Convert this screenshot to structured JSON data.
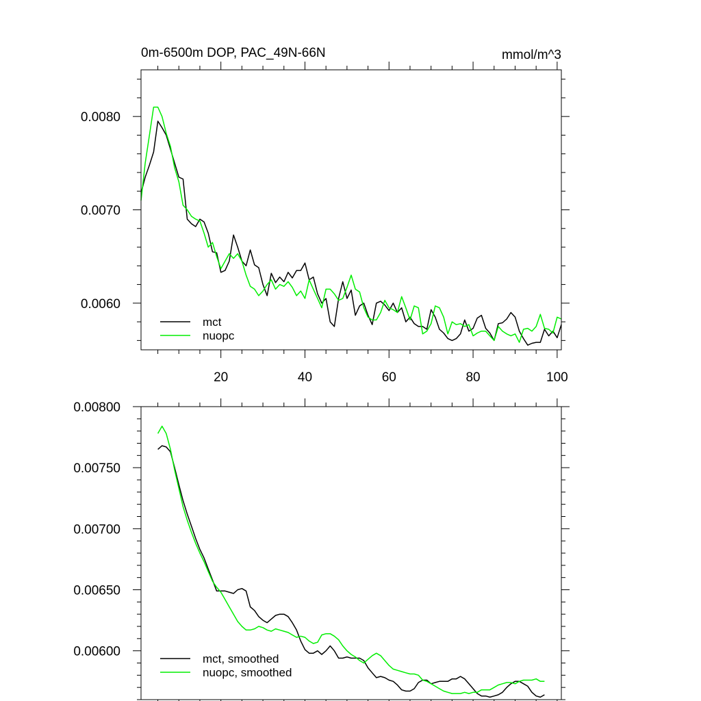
{
  "chart_data": [
    {
      "type": "line",
      "title": "0m-6500m DOP, PAC_49N-66N",
      "units_label": "mmol/m^3",
      "xlabel": "",
      "ylabel": "",
      "xlim": [
        1,
        101
      ],
      "ylim": [
        0.0055,
        0.0085
      ],
      "xticks": [
        20,
        40,
        60,
        80,
        100
      ],
      "xtick_labels": [
        "20",
        "40",
        "60",
        "80",
        "100"
      ],
      "yticks": [
        0.006,
        0.007,
        0.008
      ],
      "ytick_labels": [
        "0.0060",
        "0.0070",
        "0.0080"
      ],
      "x": [
        1,
        2,
        3,
        4,
        5,
        6,
        7,
        8,
        9,
        10,
        11,
        12,
        13,
        14,
        15,
        16,
        17,
        18,
        19,
        20,
        21,
        22,
        23,
        24,
        25,
        26,
        27,
        28,
        29,
        30,
        31,
        32,
        33,
        34,
        35,
        36,
        37,
        38,
        39,
        40,
        41,
        42,
        43,
        44,
        45,
        46,
        47,
        48,
        49,
        50,
        51,
        52,
        53,
        54,
        55,
        56,
        57,
        58,
        59,
        60,
        61,
        62,
        63,
        64,
        65,
        66,
        67,
        68,
        69,
        70,
        71,
        72,
        73,
        74,
        75,
        76,
        77,
        78,
        79,
        80,
        81,
        82,
        83,
        84,
        85,
        86,
        87,
        88,
        89,
        90,
        91,
        92,
        93,
        94,
        95,
        96,
        97,
        98,
        99,
        100,
        101
      ],
      "series": [
        {
          "name": "mct",
          "color": "#000000",
          "values": [
            0.00718,
            0.00735,
            0.00748,
            0.00762,
            0.00795,
            0.00788,
            0.0078,
            0.00765,
            0.0075,
            0.00735,
            0.00733,
            0.0069,
            0.00685,
            0.00682,
            0.0069,
            0.00687,
            0.00675,
            0.00655,
            0.00654,
            0.00633,
            0.00635,
            0.00645,
            0.00673,
            0.0066,
            0.00645,
            0.0064,
            0.00657,
            0.00641,
            0.00638,
            0.0062,
            0.00608,
            0.00632,
            0.00622,
            0.00628,
            0.00623,
            0.00633,
            0.00627,
            0.00635,
            0.00635,
            0.00643,
            0.00625,
            0.00628,
            0.0061,
            0.006,
            0.00605,
            0.0058,
            0.00575,
            0.00605,
            0.00623,
            0.00605,
            0.00614,
            0.00587,
            0.00597,
            0.006,
            0.00587,
            0.00577,
            0.006,
            0.00602,
            0.00598,
            0.00592,
            0.006,
            0.0059,
            0.00595,
            0.0058,
            0.00585,
            0.00578,
            0.00575,
            0.00575,
            0.00572,
            0.00593,
            0.00585,
            0.00572,
            0.00568,
            0.00562,
            0.0056,
            0.00562,
            0.00567,
            0.00582,
            0.0057,
            0.00573,
            0.00584,
            0.00587,
            0.00573,
            0.00568,
            0.0056,
            0.00578,
            0.00579,
            0.00583,
            0.0059,
            0.00585,
            0.0057,
            0.00562,
            0.00555,
            0.00557,
            0.00558,
            0.00558,
            0.00572,
            0.00565,
            0.0057,
            0.00563,
            0.00577
          ]
        },
        {
          "name": "nuopc",
          "color": "#00ee00",
          "values": [
            0.0071,
            0.0075,
            0.0078,
            0.0081,
            0.0081,
            0.008,
            0.00782,
            0.00768,
            0.00745,
            0.0073,
            0.00705,
            0.007,
            0.00693,
            0.0069,
            0.00688,
            0.00675,
            0.0066,
            0.00665,
            0.0065,
            0.00637,
            0.00645,
            0.00653,
            0.00648,
            0.00653,
            0.00645,
            0.0063,
            0.00618,
            0.00615,
            0.00608,
            0.00613,
            0.0062,
            0.00625,
            0.00615,
            0.0062,
            0.00618,
            0.00623,
            0.00617,
            0.00608,
            0.00613,
            0.00605,
            0.00625,
            0.00615,
            0.00605,
            0.00595,
            0.00615,
            0.00615,
            0.0061,
            0.00603,
            0.00605,
            0.00617,
            0.0063,
            0.00615,
            0.00612,
            0.00595,
            0.00585,
            0.00582,
            0.00582,
            0.0059,
            0.00603,
            0.00595,
            0.00593,
            0.0059,
            0.00607,
            0.00595,
            0.00582,
            0.00597,
            0.00595,
            0.00567,
            0.0057,
            0.00578,
            0.00597,
            0.00595,
            0.00585,
            0.00567,
            0.0058,
            0.00577,
            0.00578,
            0.00575,
            0.00577,
            0.00565,
            0.00568,
            0.0057,
            0.0057,
            0.00565,
            0.0056,
            0.00575,
            0.0057,
            0.00567,
            0.00565,
            0.00567,
            0.00558,
            0.00572,
            0.00573,
            0.0057,
            0.00575,
            0.00588,
            0.00573,
            0.00572,
            0.00568,
            0.00585,
            0.00583
          ]
        }
      ],
      "legend": [
        "mct",
        "nuopc"
      ],
      "legend_position": "bottom-left",
      "grid": false
    },
    {
      "type": "line",
      "title": "",
      "xlabel": "",
      "ylabel": "",
      "xlim": [
        1,
        101
      ],
      "ylim": [
        0.0056,
        0.008
      ],
      "xticks": [
        20,
        40,
        60,
        80,
        100
      ],
      "xtick_labels": [],
      "yticks": [
        0.006,
        0.0065,
        0.007,
        0.0075,
        0.008
      ],
      "ytick_labels": [
        "0.00600",
        "0.00650",
        "0.00700",
        "0.00750",
        "0.00800"
      ],
      "x": [
        5,
        6,
        7,
        8,
        9,
        10,
        11,
        12,
        13,
        14,
        15,
        16,
        17,
        18,
        19,
        20,
        21,
        22,
        23,
        24,
        25,
        26,
        27,
        28,
        29,
        30,
        31,
        32,
        33,
        34,
        35,
        36,
        37,
        38,
        39,
        40,
        41,
        42,
        43,
        44,
        45,
        46,
        47,
        48,
        49,
        50,
        51,
        52,
        53,
        54,
        55,
        56,
        57,
        58,
        59,
        60,
        61,
        62,
        63,
        64,
        65,
        66,
        67,
        68,
        69,
        70,
        71,
        72,
        73,
        74,
        75,
        76,
        77,
        78,
        79,
        80,
        81,
        82,
        83,
        84,
        85,
        86,
        87,
        88,
        89,
        90,
        91,
        92,
        93,
        94,
        95,
        96,
        97
      ],
      "series": [
        {
          "name": "mct, smoothed",
          "color": "#000000",
          "values": [
            0.00765,
            0.00768,
            0.00767,
            0.00763,
            0.0075,
            0.00736,
            0.00723,
            0.00712,
            0.00702,
            0.00692,
            0.00683,
            0.00676,
            0.00667,
            0.00658,
            0.00649,
            0.00649,
            0.00649,
            0.00648,
            0.00647,
            0.0065,
            0.00651,
            0.00649,
            0.00636,
            0.00633,
            0.00628,
            0.00625,
            0.00623,
            0.00626,
            0.00629,
            0.0063,
            0.0063,
            0.00628,
            0.00623,
            0.00617,
            0.00608,
            0.00601,
            0.00598,
            0.00598,
            0.006,
            0.00597,
            0.006,
            0.00604,
            0.006,
            0.00594,
            0.00594,
            0.00595,
            0.00594,
            0.00594,
            0.00594,
            0.00592,
            0.00586,
            0.00582,
            0.00578,
            0.00579,
            0.00578,
            0.00576,
            0.00575,
            0.00572,
            0.00568,
            0.00567,
            0.00567,
            0.00569,
            0.00574,
            0.00576,
            0.00576,
            0.00573,
            0.00574,
            0.00575,
            0.00575,
            0.00575,
            0.00577,
            0.00577,
            0.00579,
            0.00577,
            0.00573,
            0.00569,
            0.00565,
            0.00563,
            0.00563,
            0.00562,
            0.00563,
            0.00564,
            0.00566,
            0.0057,
            0.00573,
            0.00575,
            0.00575,
            0.00573,
            0.00571,
            0.00566,
            0.00563,
            0.00562,
            0.00564
          ]
        },
        {
          "name": "nuopc, smoothed",
          "color": "#00ee00",
          "values": [
            0.00778,
            0.00784,
            0.00778,
            0.00765,
            0.00748,
            0.00733,
            0.00718,
            0.00707,
            0.00697,
            0.00688,
            0.0068,
            0.00673,
            0.00665,
            0.00657,
            0.00652,
            0.00648,
            0.00642,
            0.00636,
            0.0063,
            0.00624,
            0.0062,
            0.00617,
            0.00617,
            0.00618,
            0.0062,
            0.00619,
            0.00617,
            0.00616,
            0.00618,
            0.00617,
            0.00616,
            0.00615,
            0.00613,
            0.00611,
            0.00612,
            0.00611,
            0.00608,
            0.00606,
            0.00607,
            0.00613,
            0.00614,
            0.00614,
            0.00612,
            0.00609,
            0.00604,
            0.006,
            0.00597,
            0.00595,
            0.00592,
            0.0059,
            0.00593,
            0.00596,
            0.00598,
            0.00596,
            0.00592,
            0.00588,
            0.00585,
            0.00584,
            0.00583,
            0.00582,
            0.00581,
            0.00581,
            0.0058,
            0.00576,
            0.00575,
            0.00573,
            0.00571,
            0.00569,
            0.00567,
            0.00566,
            0.00565,
            0.00565,
            0.00565,
            0.00566,
            0.00565,
            0.00566,
            0.00566,
            0.00568,
            0.00568,
            0.00568,
            0.0057,
            0.00572,
            0.00573,
            0.00574,
            0.00574,
            0.00573,
            0.00575,
            0.00576,
            0.00576,
            0.00576,
            0.00577,
            0.00575,
            0.00575
          ]
        }
      ],
      "legend": [
        "mct, smoothed",
        "nuopc, smoothed"
      ],
      "legend_position": "bottom-left",
      "grid": false
    }
  ]
}
